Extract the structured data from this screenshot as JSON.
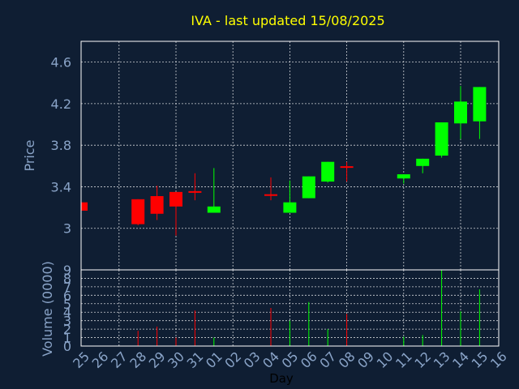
{
  "chart_data": {
    "type": "candlestick",
    "title": "IVA - last updated 15/08/2025",
    "xlabel": "Day",
    "price_panel": {
      "ylabel": "Price",
      "ylim": [
        2.6,
        4.8
      ],
      "ticks": [
        "3",
        "3.4",
        "3.8",
        "4.2",
        "4.6"
      ],
      "grid": true
    },
    "volume_panel": {
      "ylabel": "Volume (0000)",
      "ylim": [
        0,
        9
      ],
      "ticks": [
        "0",
        "1",
        "2",
        "3",
        "4",
        "5",
        "6",
        "7",
        "8",
        "9"
      ],
      "grid": true
    },
    "x_ticks": [
      "25",
      "26",
      "27",
      "28",
      "29",
      "30",
      "31",
      "01",
      "02",
      "03",
      "04",
      "05",
      "06",
      "07",
      "08",
      "09",
      "10",
      "11",
      "12",
      "13",
      "14",
      "15",
      "16"
    ],
    "candles": [
      {
        "day": "25",
        "open": 3.25,
        "close": 3.17,
        "high": 3.25,
        "low": 3.17,
        "volume": 0.0
      },
      {
        "day": "28",
        "open": 3.28,
        "close": 3.04,
        "high": 3.28,
        "low": 3.03,
        "volume": 1.8
      },
      {
        "day": "29",
        "open": 3.31,
        "close": 3.14,
        "high": 3.41,
        "low": 3.08,
        "volume": 2.3
      },
      {
        "day": "30",
        "open": 3.35,
        "close": 3.21,
        "high": 3.35,
        "low": 2.93,
        "volume": 1.0
      },
      {
        "day": "31",
        "open": 3.35,
        "close": 3.35,
        "high": 3.53,
        "low": 3.27,
        "volume": 4.2
      },
      {
        "day": "01",
        "open": 3.15,
        "close": 3.21,
        "high": 3.58,
        "low": 3.15,
        "volume": 1.0
      },
      {
        "day": "04",
        "open": 3.32,
        "close": 3.32,
        "high": 3.49,
        "low": 3.27,
        "volume": 4.5
      },
      {
        "day": "05",
        "open": 3.15,
        "close": 3.25,
        "high": 3.46,
        "low": 3.15,
        "volume": 3.0
      },
      {
        "day": "06",
        "open": 3.29,
        "close": 3.5,
        "high": 3.5,
        "low": 3.29,
        "volume": 5.2
      },
      {
        "day": "07",
        "open": 3.45,
        "close": 3.64,
        "high": 3.64,
        "low": 3.44,
        "volume": 2.0
      },
      {
        "day": "08",
        "open": 3.59,
        "close": 3.59,
        "high": 3.64,
        "low": 3.45,
        "volume": 3.8
      },
      {
        "day": "11",
        "open": 3.48,
        "close": 3.52,
        "high": 3.52,
        "low": 3.43,
        "volume": 1.1
      },
      {
        "day": "12",
        "open": 3.6,
        "close": 3.67,
        "high": 3.67,
        "low": 3.53,
        "volume": 1.3
      },
      {
        "day": "13",
        "open": 3.7,
        "close": 4.02,
        "high": 4.02,
        "low": 3.68,
        "volume": 9.0
      },
      {
        "day": "14",
        "open": 4.01,
        "close": 4.22,
        "high": 4.37,
        "low": 3.86,
        "volume": 4.1
      },
      {
        "day": "15",
        "open": 4.03,
        "close": 4.36,
        "high": 4.36,
        "low": 3.86,
        "volume": 6.7
      }
    ],
    "colors": {
      "background": "#0f1e33",
      "plot_background": "#0f1e33",
      "grid": "#ffffff",
      "up": "#00ff00",
      "down": "#ff0000",
      "axis_text": "#8aa4c8",
      "title": "#ffff00"
    }
  }
}
